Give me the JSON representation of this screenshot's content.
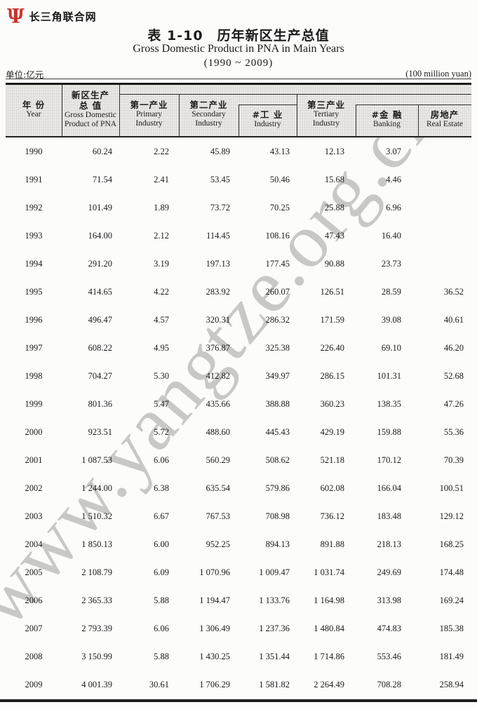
{
  "page": {
    "logo": {
      "icon": "psi-logo-icon",
      "glyph": "Ψ",
      "text": "长三角联合网"
    },
    "title_cn": "表 1-10　历年新区生产总值",
    "title_en": "Gross Domestic Product in PNA in Main Years",
    "title_years": "(1990 ~ 2009)",
    "unit_left": "单位:亿元",
    "unit_right": "(100 million yuan)",
    "watermark": "www.yangtze.org.cn"
  },
  "table": {
    "header": [
      {
        "cn": "年  份",
        "en": "Year"
      },
      {
        "cn": "新区生产",
        "cn2": "总  值",
        "en": "Gross Domestic",
        "en2": "Product of PNA"
      },
      {
        "cn": "第一产业",
        "en": "Primary",
        "en2": "Industry"
      },
      {
        "cn": "第二产业",
        "en": "Secondary",
        "en2": "Industry"
      },
      {
        "cn": "#工  业",
        "en": "Industry"
      },
      {
        "cn": "第三产业",
        "en": "Tertiary",
        "en2": "Industry"
      },
      {
        "cn": "#金  融",
        "en": "Banking"
      },
      {
        "cn": "房地产",
        "en": "Real Estate"
      }
    ],
    "rows": [
      [
        "1990",
        "60.24",
        "2.22",
        "45.89",
        "43.13",
        "12.13",
        "3.07",
        ""
      ],
      [
        "1991",
        "71.54",
        "2.41",
        "53.45",
        "50.46",
        "15.68",
        "4.46",
        ""
      ],
      [
        "1992",
        "101.49",
        "1.89",
        "73.72",
        "70.25",
        "25.88",
        "6.96",
        ""
      ],
      [
        "1993",
        "164.00",
        "2.12",
        "114.45",
        "108.16",
        "47.43",
        "16.40",
        ""
      ],
      [
        "1994",
        "291.20",
        "3.19",
        "197.13",
        "177.45",
        "90.88",
        "23.73",
        ""
      ],
      [
        "1995",
        "414.65",
        "4.22",
        "283.92",
        "260.07",
        "126.51",
        "28.59",
        "36.52"
      ],
      [
        "1996",
        "496.47",
        "4.57",
        "320.31",
        "286.32",
        "171.59",
        "39.08",
        "40.61"
      ],
      [
        "1997",
        "608.22",
        "4.95",
        "376.87",
        "325.38",
        "226.40",
        "69.10",
        "46.20"
      ],
      [
        "1998",
        "704.27",
        "5.30",
        "412.82",
        "349.97",
        "286.15",
        "101.31",
        "52.68"
      ],
      [
        "1999",
        "801.36",
        "5.47",
        "435.66",
        "388.88",
        "360.23",
        "138.35",
        "47.26"
      ],
      [
        "2000",
        "923.51",
        "5.72",
        "488.60",
        "445.43",
        "429.19",
        "159.88",
        "55.36"
      ],
      [
        "2001",
        "1 087.53",
        "6.06",
        "560.29",
        "508.62",
        "521.18",
        "170.12",
        "70.39"
      ],
      [
        "2002",
        "1 244.00",
        "6.38",
        "635.54",
        "579.86",
        "602.08",
        "166.04",
        "100.51"
      ],
      [
        "2003",
        "1 510.32",
        "6.67",
        "767.53",
        "708.98",
        "736.12",
        "183.48",
        "129.12"
      ],
      [
        "2004",
        "1 850.13",
        "6.00",
        "952.25",
        "894.13",
        "891.88",
        "218.13",
        "168.25"
      ],
      [
        "2005",
        "2 108.79",
        "6.09",
        "1 070.96",
        "1 009.47",
        "1 031.74",
        "249.69",
        "174.48"
      ],
      [
        "2006",
        "2 365.33",
        "5.88",
        "1 194.47",
        "1 133.76",
        "1 164.98",
        "313.98",
        "169.24"
      ],
      [
        "2007",
        "2 793.39",
        "6.06",
        "1 306.49",
        "1 237.36",
        "1 480.84",
        "474.83",
        "185.38"
      ],
      [
        "2008",
        "3 150.99",
        "5.88",
        "1 430.25",
        "1 351.44",
        "1 714.86",
        "553.46",
        "181.49"
      ],
      [
        "2009",
        "4 001.39",
        "30.61",
        "1 706.29",
        "1 581.82",
        "2 264.49",
        "708.28",
        "258.94"
      ]
    ]
  },
  "colors": {
    "logo_red": "#c5342b",
    "ink": "#1b1b1b",
    "header_bg": "#eae9e5"
  }
}
